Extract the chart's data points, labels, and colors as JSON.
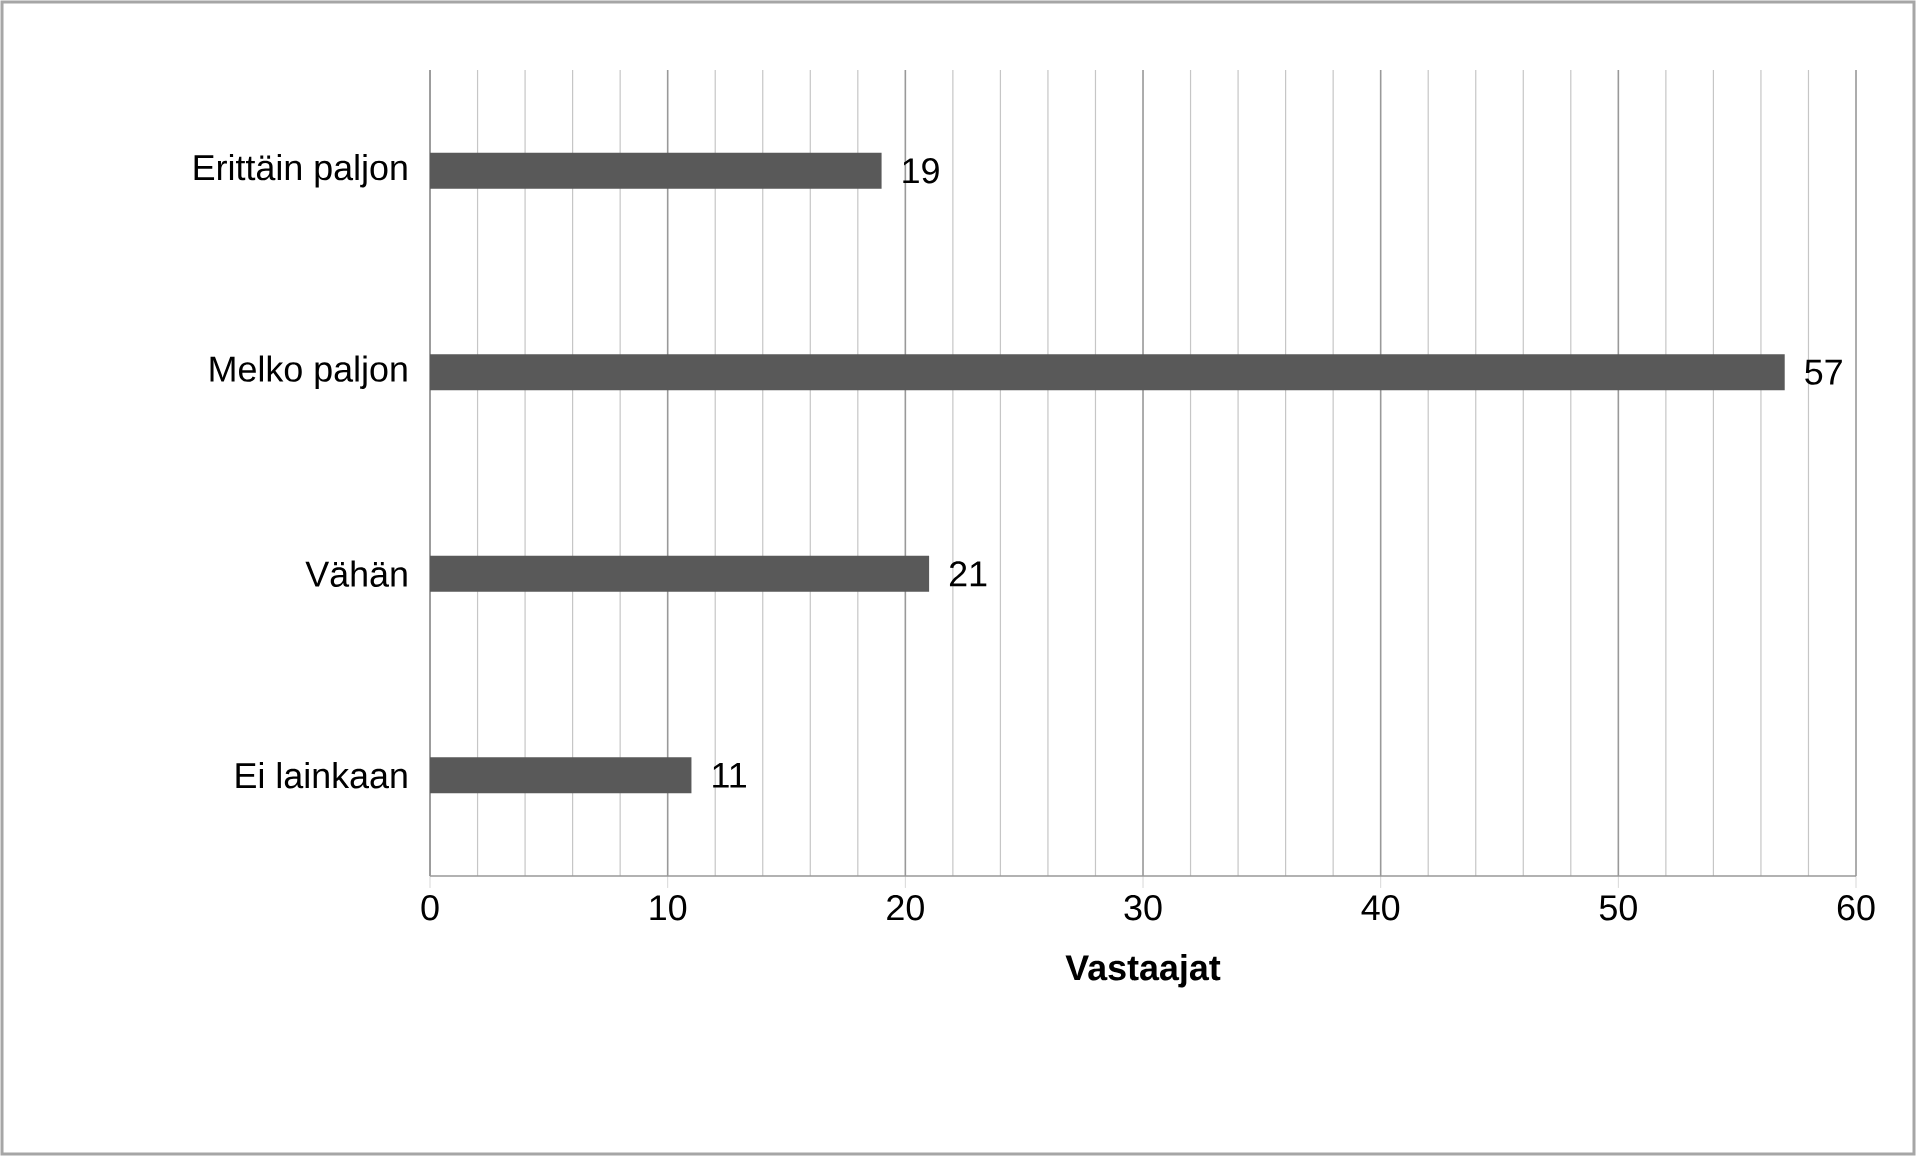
{
  "chart_data": {
    "type": "bar",
    "orientation": "horizontal",
    "xlabel": "Vastaajat",
    "categories": [
      "Erittäin paljon",
      "Melko paljon",
      "Vähän",
      "Ei lainkaan"
    ],
    "values": [
      19,
      57,
      21,
      11
    ],
    "color": "#595959",
    "data_labels": true,
    "grid": "x",
    "xlim": [
      0,
      60
    ],
    "xticks": [
      0,
      {
        "value": 2,
        "label": null
      },
      {
        "value": 4,
        "label": null
      },
      {
        "value": 6,
        "label": null
      },
      {
        "value": 8,
        "label": null
      },
      10,
      {
        "value": 12,
        "label": null
      },
      {
        "value": 14,
        "label": null
      },
      {
        "value": 16,
        "label": null
      },
      {
        "value": 18,
        "label": null
      },
      20,
      {
        "value": 22,
        "label": null
      },
      {
        "value": 24,
        "label": null
      },
      {
        "value": 26,
        "label": null
      },
      {
        "value": 28,
        "label": null
      },
      30,
      {
        "value": 32,
        "label": null
      },
      {
        "value": 34,
        "label": null
      },
      {
        "value": 36,
        "label": null
      },
      {
        "value": 38,
        "label": null
      },
      40,
      {
        "value": 42,
        "label": null
      },
      {
        "value": 44,
        "label": null
      },
      {
        "value": 46,
        "label": null
      },
      {
        "value": 48,
        "label": null
      },
      50,
      {
        "value": 52,
        "label": null
      },
      {
        "value": 54,
        "label": null
      },
      {
        "value": 56,
        "label": null
      },
      {
        "value": 58,
        "label": null
      },
      60
    ]
  }
}
